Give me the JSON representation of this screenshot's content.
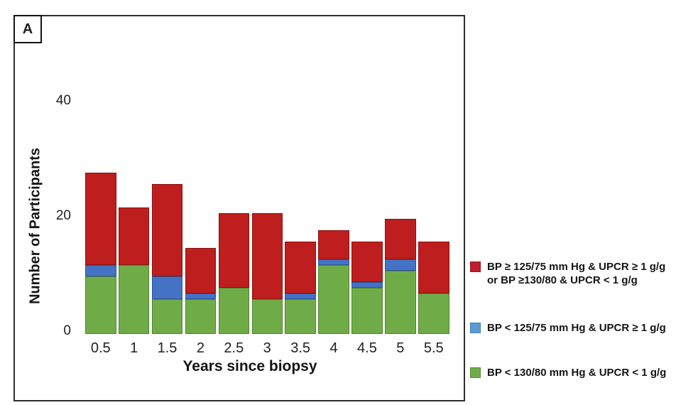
{
  "panel": {
    "label": "A"
  },
  "chart_data": {
    "type": "bar",
    "subtype": "stacked-vertical",
    "title": "",
    "xlabel": "Years since biopsy",
    "ylabel": "Number of Participants",
    "categories": [
      "0.5",
      "1",
      "1.5",
      "2",
      "2.5",
      "3",
      "3.5",
      "4",
      "4.5",
      "5",
      "5.5"
    ],
    "series": [
      {
        "name": "BP < 130/80 mm Hg & UPCR < 1 g/g",
        "color": "#6FAC47",
        "border_color": "#538233",
        "values": [
          10,
          12,
          6,
          6,
          8,
          6,
          6,
          12,
          8,
          11,
          7
        ]
      },
      {
        "name": "BP < 125/75 mm Hg & UPCR ≥ 1 g/g",
        "color": "#4472C4",
        "border_color": "#2F55A0",
        "values": [
          2,
          0,
          4,
          1,
          0,
          0,
          1,
          1,
          1,
          2,
          0
        ]
      },
      {
        "name": "BP ≥ 125/75 mm Hg & UPCR ≥ 1 g/g or BP ≥130/80 & UPCR < 1 g/g",
        "color": "#BE1E1D",
        "border_color": "#8A1410",
        "values": [
          16,
          10,
          16,
          8,
          13,
          15,
          9,
          5,
          7,
          7,
          9
        ]
      }
    ],
    "totals": [
      28,
      22,
      26,
      15,
      21,
      21,
      16,
      18,
      16,
      20,
      16
    ],
    "y_axis": {
      "ticks": [
        0,
        20,
        40
      ],
      "ylim": [
        0,
        40
      ],
      "grid": false
    },
    "legend_position": "right-outside"
  },
  "legend": {
    "entries": [
      {
        "swatch_color": "#BE1E2D",
        "lines": [
          "BP ≥ 125/75 mm Hg & UPCR ≥ 1 g/g",
          "or BP ≥130/80 & UPCR < 1 g/g"
        ]
      },
      {
        "swatch_color": "#5B9BD5",
        "lines": [
          "BP < 125/75 mm Hg & UPCR ≥ 1 g/g"
        ]
      },
      {
        "swatch_color": "#6FAC47",
        "lines": [
          "BP < 130/80 mm Hg & UPCR < 1 g/g"
        ]
      }
    ]
  }
}
